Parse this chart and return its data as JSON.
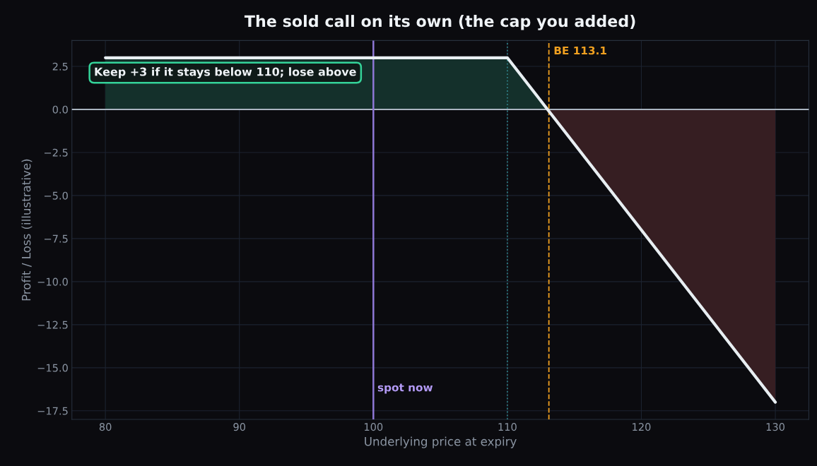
{
  "chart_data": {
    "type": "line",
    "title": "The sold call on its own (the cap you added)",
    "xlabel": "Underlying price at expiry",
    "ylabel": "Profit / Loss (illustrative)",
    "series": [
      {
        "type": "area",
        "color": "#14302b",
        "x": [
          80,
          110,
          113
        ],
        "values": [
          3,
          3,
          0
        ]
      },
      {
        "type": "area",
        "color": "#361e22",
        "x": [
          113,
          130
        ],
        "values": [
          0,
          -17
        ]
      },
      {
        "color": "#e8eef2",
        "x": [
          80,
          110,
          130
        ],
        "values": [
          3,
          3,
          -17
        ]
      }
    ],
    "xlim": [
      77.5,
      132.5
    ],
    "ylim": [
      -18,
      4
    ],
    "xticks": [
      80,
      90,
      100,
      110,
      120,
      130
    ],
    "yticks": [
      {
        "value": -17.5,
        "label": "−17.5"
      },
      {
        "value": -15,
        "label": "−15.0"
      },
      {
        "value": -12.5,
        "label": "−12.5"
      },
      {
        "value": -10,
        "label": "−10.0"
      },
      {
        "value": -7.5,
        "label": "−7.5"
      },
      {
        "value": -5,
        "label": "−5.0"
      },
      {
        "value": -2.5,
        "label": "−2.5"
      },
      {
        "value": 0,
        "label": "0.0"
      },
      {
        "value": 2.5,
        "label": "2.5"
      }
    ],
    "ref_lines": [
      {
        "axis": "y",
        "value": 0,
        "color": "#aab4c0",
        "line_style": "solid"
      },
      {
        "axis": "x",
        "value": 100,
        "label": "spot now",
        "color": "#8e77d6",
        "line_style": "solid"
      },
      {
        "axis": "x",
        "value": 110,
        "color": "#2f7f86",
        "line_style": "dotted"
      },
      {
        "axis": "x",
        "value": 113.1,
        "label": "BE 113.1",
        "color": "#f0a020",
        "line_style": "dashed"
      }
    ],
    "annotations": [
      "Keep +3 if it stays below 110; lose above"
    ],
    "grid": true,
    "legend": false
  }
}
